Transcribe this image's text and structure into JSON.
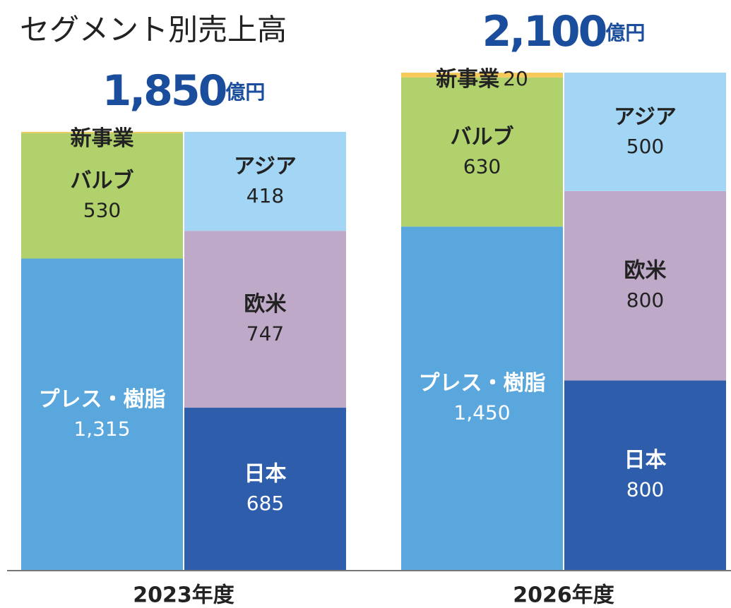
{
  "chart_data": {
    "type": "stacked_bar",
    "title": "セグメント別売上高",
    "categories": [
      "2023年度",
      "2026年度"
    ],
    "totals": [
      1850,
      2100
    ],
    "total_labels": [
      "1,850",
      "2,100"
    ],
    "total_unit": "億円",
    "total_color": "#1a4d9c",
    "ylim": [
      0,
      2100
    ],
    "stacks": [
      {
        "series": [
          {
            "name": "プレス・樹脂",
            "color": "#5aa7de",
            "label_color": "#ffffff",
            "values": [
              1315,
              1450
            ],
            "value_labels": [
              "1,315",
              "1,450"
            ]
          },
          {
            "name": "バルブ",
            "color": "#b0d16c",
            "label_color": "#222222",
            "values": [
              530,
              630
            ]
          },
          {
            "name": "新事業",
            "color": "#f7c95a",
            "label_color": "#222222",
            "values": [
              5,
              20
            ],
            "value_labels": [
              null,
              "20"
            ]
          }
        ]
      },
      {
        "series": [
          {
            "name": "日本",
            "color": "#2d5dab",
            "label_color": "#ffffff",
            "values": [
              685,
              800
            ]
          },
          {
            "name": "欧米",
            "color": "#bfa9c8",
            "label_color": "#222222",
            "values": [
              747,
              800
            ]
          },
          {
            "name": "アジア",
            "color": "#a3d5f5",
            "label_color": "#222222",
            "values": [
              418,
              500
            ]
          }
        ]
      }
    ]
  }
}
